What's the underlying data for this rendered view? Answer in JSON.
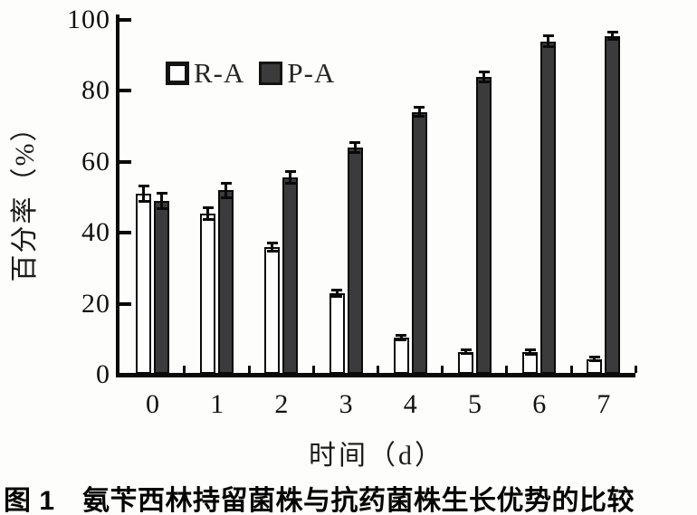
{
  "figure": {
    "caption": "图 1　氨苄西林持留菌株与抗药菌株生长优势的比较"
  },
  "chart_data": {
    "type": "bar",
    "title": "",
    "xlabel": "时间（d）",
    "ylabel": "百分率（%）",
    "categories": [
      "0",
      "1",
      "2",
      "3",
      "4",
      "5",
      "6",
      "7"
    ],
    "series": [
      {
        "name": "R-A",
        "fill": "#fefefe",
        "values": [
          51,
          45.5,
          36,
          23,
          10.5,
          6.5,
          6.3,
          4.4
        ],
        "errors": [
          2.2,
          1.8,
          1.3,
          1.0,
          0.7,
          0.7,
          0.8,
          0.6
        ]
      },
      {
        "name": "P-A",
        "fill": "#3b3b3b",
        "values": [
          49,
          52,
          55.5,
          64,
          74,
          84,
          94,
          95.5
        ],
        "errors": [
          2.2,
          2.2,
          1.8,
          1.6,
          1.4,
          1.5,
          1.6,
          1.2
        ]
      }
    ],
    "ylim": [
      0,
      100
    ],
    "yticks": [
      0,
      20,
      40,
      60,
      80,
      100
    ],
    "legend_position": "top-left-inside",
    "grid": false,
    "error_bars": true
  },
  "colors": {
    "bar_dark": "#3b3b3b",
    "bar_light": "#fefefe",
    "axis": "#0a0a0a",
    "background": "#fdfdfb"
  }
}
